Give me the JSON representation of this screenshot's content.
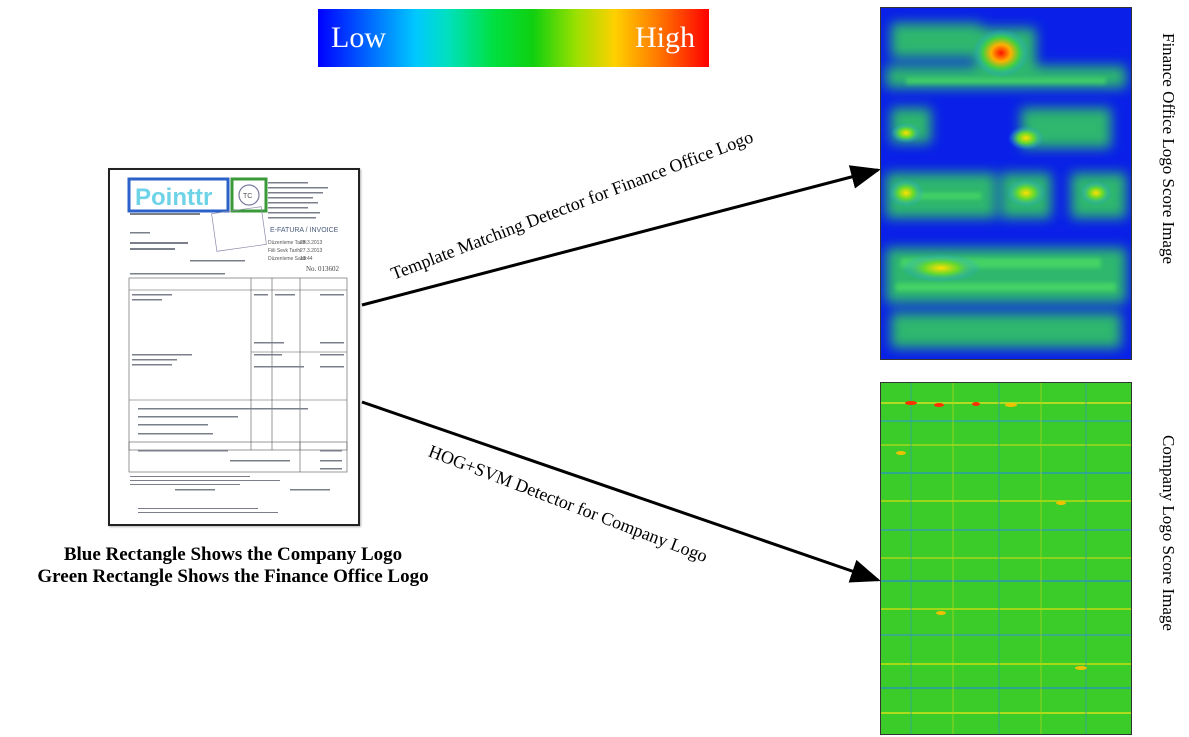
{
  "colorbar": {
    "low_label": "Low",
    "high_label": "High"
  },
  "invoice": {
    "brand": "Pointtr",
    "invoice_heading": "E-FATURA / INVOICE",
    "number": "No. 013602",
    "dates": [
      "27.3.2013",
      "27.3.2013",
      "10:44"
    ]
  },
  "caption": {
    "line1": "Blue Rectangle Shows the Company Logo",
    "line2": "Green Rectangle Shows the Finance Office Logo"
  },
  "arrows": {
    "top_label": "Template Matching Detector for Finance Office Logo",
    "bottom_label": "HOG+SVM Detector for Company Logo"
  },
  "outputs": {
    "top_label": "Finance Office Logo Score Image",
    "bottom_label": "Company Logo Score Image"
  },
  "colors": {
    "company_logo_box": "#2a62c9",
    "finance_logo_box": "#3a9a3a",
    "heat_low": "#0000ff",
    "heat_high": "#ff0000"
  }
}
